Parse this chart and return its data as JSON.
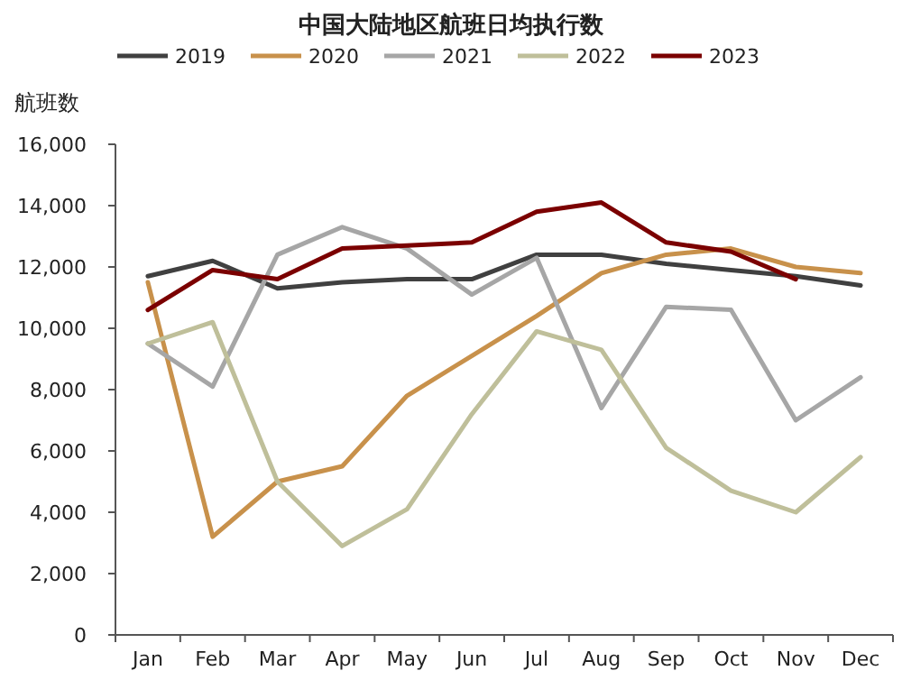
{
  "chart_data": {
    "type": "line",
    "title": "中国大陆地区航班日均执行数",
    "ylabel": "航班数",
    "categories": [
      "Jan",
      "Feb",
      "Mar",
      "Apr",
      "May",
      "Jun",
      "Jul",
      "Aug",
      "Sep",
      "Oct",
      "Nov",
      "Dec"
    ],
    "series": [
      {
        "name": "2019",
        "color": "#404040",
        "values": [
          11700,
          12200,
          11300,
          11500,
          11600,
          11600,
          12400,
          12400,
          12100,
          11900,
          11700,
          11400
        ]
      },
      {
        "name": "2020",
        "color": "#c8914b",
        "values": [
          11500,
          3200,
          5000,
          5500,
          7800,
          9100,
          10400,
          11800,
          12400,
          12600,
          12000,
          11800
        ]
      },
      {
        "name": "2021",
        "color": "#a6a6a6",
        "values": [
          9500,
          8100,
          12400,
          13300,
          12600,
          11100,
          12300,
          7400,
          10700,
          10600,
          7000,
          8400
        ]
      },
      {
        "name": "2022",
        "color": "#bfbf9a",
        "values": [
          9500,
          10200,
          5000,
          2900,
          4100,
          7200,
          9900,
          9300,
          6100,
          4700,
          4000,
          5800
        ]
      },
      {
        "name": "2023",
        "color": "#7b0000",
        "values": [
          10600,
          11900,
          11600,
          12600,
          12700,
          12800,
          13800,
          14100,
          12800,
          12500,
          11600,
          null
        ]
      }
    ],
    "ylim": [
      0,
      16000
    ],
    "yticks": [
      0,
      {
        "value": 2000,
        "label": "2,000"
      },
      {
        "value": 4000,
        "label": "4,000"
      },
      {
        "value": 6000,
        "label": "6,000"
      },
      {
        "value": 8000,
        "label": "8,000"
      },
      {
        "value": 10000,
        "label": "10,000"
      },
      {
        "value": 12000,
        "label": "12,000"
      },
      {
        "value": 14000,
        "label": "14,000"
      },
      {
        "value": 16000,
        "label": "16,000"
      }
    ],
    "legend": "top"
  }
}
